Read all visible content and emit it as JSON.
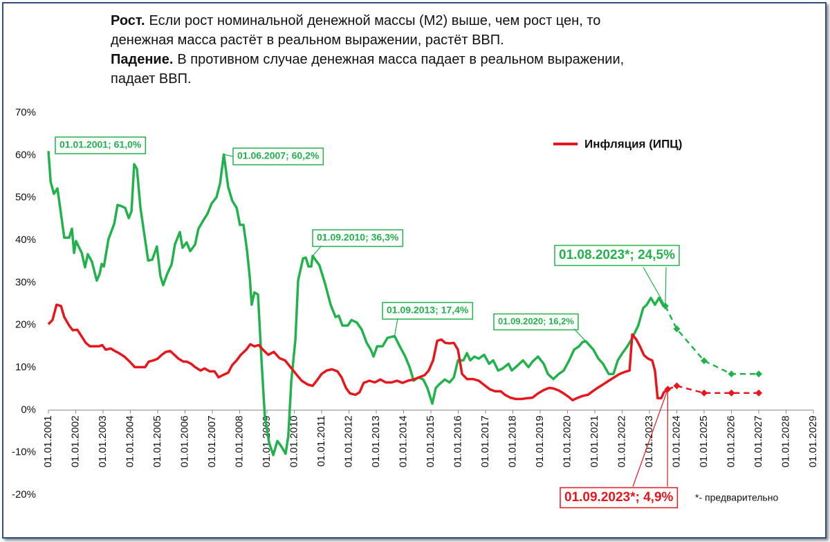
{
  "header": {
    "lines": [
      {
        "bold": "Рост.",
        "text": "Если рост номинальной денежной массы (М2) выше, чем рост цен,  то"
      },
      {
        "text": "денежная масса растёт в реальном выражении, растёт ВВП."
      },
      {
        "bold": "Падение.",
        "text": "В противном случае денежная масса падает в реальном выражении,"
      },
      {
        "text": "падает ВВП."
      }
    ]
  },
  "chart_data": {
    "type": "line",
    "xlim": [
      2001,
      2029
    ],
    "xticks": [
      {
        "value": 2001,
        "label": "01.01.2001"
      },
      {
        "value": 2002,
        "label": "01.01.2002"
      },
      {
        "value": 2003,
        "label": "01.01.2003"
      },
      {
        "value": 2004,
        "label": "01.01.2004"
      },
      {
        "value": 2005,
        "label": "01.01.2005"
      },
      {
        "value": 2006,
        "label": "01.01.2006"
      },
      {
        "value": 2007,
        "label": "01.01.2007"
      },
      {
        "value": 2008,
        "label": "01.01.2008"
      },
      {
        "value": 2009,
        "label": "01.01.2009"
      },
      {
        "value": 2010,
        "label": "01.01.2010"
      },
      {
        "value": 2011,
        "label": "01.01.2011"
      },
      {
        "value": 2012,
        "label": "01.01.2012"
      },
      {
        "value": 2013,
        "label": "01.01.2013"
      },
      {
        "value": 2014,
        "label": "01.01.2014"
      },
      {
        "value": 2015,
        "label": "01.01.2015"
      },
      {
        "value": 2016,
        "label": "01.01.2016"
      },
      {
        "value": 2017,
        "label": "01.01.2017"
      },
      {
        "value": 2018,
        "label": "01.01.2018"
      },
      {
        "value": 2019,
        "label": "01.01.2019"
      },
      {
        "value": 2020,
        "label": "01.01.2020"
      },
      {
        "value": 2021,
        "label": "01.01.2021"
      },
      {
        "value": 2022,
        "label": "01.01.2022"
      },
      {
        "value": 2023,
        "label": "01.01.2023"
      },
      {
        "value": 2024,
        "label": "01.01.2024"
      },
      {
        "value": 2025,
        "label": "01.01.2025"
      },
      {
        "value": 2026,
        "label": "01.01.2026"
      },
      {
        "value": 2027,
        "label": "01.01.2027"
      },
      {
        "value": 2028,
        "label": "01.01.2028"
      },
      {
        "value": 2029,
        "label": "01.01.2029"
      }
    ],
    "ylim": [
      -20,
      70
    ],
    "yticks": [
      {
        "value": -20,
        "label": "-20%"
      },
      {
        "value": -10,
        "label": "-10%"
      },
      {
        "value": 0,
        "label": "0%"
      },
      {
        "value": 10,
        "label": "10%"
      },
      {
        "value": 20,
        "label": "20%"
      },
      {
        "value": 30,
        "label": "30%"
      },
      {
        "value": 40,
        "label": "40%"
      },
      {
        "value": 50,
        "label": "50%"
      },
      {
        "value": 60,
        "label": "60%"
      },
      {
        "value": 70,
        "label": "70%"
      }
    ],
    "legend": "top-right",
    "series": [
      {
        "color": "#21b24b",
        "dashed": false,
        "x": [
          2001,
          2001.08,
          2001.2,
          2001.33,
          2001.43,
          2001.58,
          2001.76,
          2001.86,
          2001.94,
          2002.01,
          2002.22,
          2002.34,
          2002.44,
          2002.59,
          2002.77,
          2002.87,
          2002.95,
          2003.03,
          2003.2,
          2003.41,
          2003.53,
          2003.68,
          2003.81,
          2003.94,
          2004.04,
          2004.14,
          2004.24,
          2004.37,
          2004.54,
          2004.65,
          2004.8,
          2004.97,
          2005.1,
          2005.2,
          2005.35,
          2005.51,
          2005.63,
          2005.81,
          2005.91,
          2006.06,
          2006.19,
          2006.37,
          2006.49,
          2006.7,
          2006.82,
          2006.97,
          2007.15,
          2007.28,
          2007.42,
          2007.58,
          2007.73,
          2007.89,
          2008.01,
          2008.14,
          2008.27,
          2008.37,
          2008.44,
          2008.54,
          2008.67,
          2008.8,
          2008.92,
          2009.08,
          2009.23,
          2009.38,
          2009.53,
          2009.68,
          2009.78,
          2009.89,
          2010.04,
          2010.14,
          2010.32,
          2010.42,
          2010.52,
          2010.62,
          2010.67,
          2010.92,
          2011.13,
          2011.33,
          2011.51,
          2011.63,
          2011.76,
          2011.96,
          2012.09,
          2012.29,
          2012.47,
          2012.65,
          2012.8,
          2012.9,
          2013.03,
          2013.23,
          2013.41,
          2013.67,
          2013.86,
          2014.06,
          2014.22,
          2014.37,
          2014.54,
          2014.72,
          2014.87,
          2015.05,
          2015.18,
          2015.3,
          2015.51,
          2015.68,
          2015.84,
          2015.99,
          2016.19,
          2016.32,
          2016.44,
          2016.59,
          2016.75,
          2016.95,
          2017.13,
          2017.28,
          2017.46,
          2017.63,
          2017.84,
          2017.96,
          2018.16,
          2018.37,
          2018.57,
          2018.72,
          2018.92,
          2019.13,
          2019.28,
          2019.48,
          2019.68,
          2019.86,
          2020.06,
          2020.24,
          2020.42,
          2020.55,
          2020.67,
          2020.95,
          2021.13,
          2021.3,
          2021.51,
          2021.68,
          2021.84,
          2022.01,
          2022.19,
          2022.34,
          2022.47,
          2022.59,
          2022.77,
          2022.9,
          2023.05,
          2023.2,
          2023.35,
          2023.48,
          2023.58
        ],
        "values": [
          61,
          53.8,
          50.9,
          52.2,
          47.6,
          40.6,
          40.6,
          42.7,
          37,
          39.8,
          37,
          33.6,
          36.7,
          35,
          30.5,
          32,
          34.4,
          33.8,
          40.3,
          43.9,
          48.3,
          48,
          47.6,
          45.2,
          46.8,
          57.9,
          56.8,
          47.6,
          40.1,
          35.2,
          35.4,
          38.5,
          31.6,
          29.4,
          32.1,
          34.3,
          39,
          41.9,
          38.2,
          39.5,
          37.4,
          39,
          42.7,
          45,
          46.2,
          48.6,
          50.1,
          53.3,
          60.2,
          52.5,
          49.3,
          47.6,
          43.6,
          43.6,
          37.5,
          31.3,
          24.8,
          27.7,
          27.2,
          11.7,
          -1.3,
          -7.8,
          -10.6,
          -7.3,
          -8.6,
          -10.3,
          -6.2,
          6.9,
          16.6,
          30.5,
          35.7,
          35.9,
          33.8,
          33.8,
          36.3,
          34.1,
          29.7,
          24.8,
          21.9,
          22.2,
          19.9,
          19.9,
          21.2,
          20.6,
          18.9,
          15.8,
          14.2,
          12.6,
          15,
          15,
          17,
          17.4,
          15,
          12.6,
          10.1,
          6.9,
          7.7,
          7.2,
          5.2,
          1.5,
          5.2,
          6,
          7.2,
          6.5,
          7.7,
          11.7,
          11.7,
          13.4,
          11.7,
          12.6,
          12.1,
          13,
          10.9,
          11.7,
          9.3,
          9.8,
          10.9,
          9.3,
          10.4,
          11.7,
          10.1,
          11.4,
          12.6,
          10.9,
          8.5,
          7.3,
          8.5,
          9.3,
          11.7,
          14.2,
          15,
          16,
          16.2,
          14.2,
          12.1,
          10.9,
          8.5,
          8.5,
          11.7,
          13.4,
          15,
          16.6,
          18.3,
          19.9,
          24,
          24.8,
          26.4,
          24.8,
          26.4,
          24.8,
          24.5
        ]
      },
      {
        "color": "#21b24b",
        "dashed": true,
        "x": [
          2023.58,
          2024,
          2025,
          2026,
          2027
        ],
        "values": [
          24.5,
          19.1,
          11.6,
          8.5,
          8.5
        ]
      },
      {
        "name": "Инфляция (ИПЦ)",
        "color": "#e8161c",
        "dashed": false,
        "x": [
          2001,
          2001.15,
          2001.3,
          2001.46,
          2001.58,
          2001.76,
          2001.89,
          2002.06,
          2002.22,
          2002.37,
          2002.52,
          2002.85,
          2002.97,
          2003.1,
          2003.28,
          2003.43,
          2003.58,
          2003.78,
          2003.99,
          2004.16,
          2004.54,
          2004.67,
          2004.85,
          2005,
          2005.15,
          2005.3,
          2005.46,
          2005.61,
          2005.76,
          2005.94,
          2006.06,
          2006.22,
          2006.37,
          2006.57,
          2006.72,
          2006.9,
          2007.08,
          2007.23,
          2007.38,
          2007.58,
          2007.73,
          2007.89,
          2008.04,
          2008.24,
          2008.39,
          2008.54,
          2008.7,
          2008.85,
          2009.05,
          2009.25,
          2009.46,
          2009.66,
          2009.86,
          2010.06,
          2010.27,
          2010.49,
          2010.67,
          2010.82,
          2011,
          2011.18,
          2011.38,
          2011.58,
          2011.73,
          2011.89,
          2012.04,
          2012.24,
          2012.39,
          2012.54,
          2012.75,
          2012.95,
          2013.15,
          2013.35,
          2013.56,
          2013.76,
          2013.96,
          2014.16,
          2014.37,
          2014.57,
          2014.77,
          2014.92,
          2015.08,
          2015.23,
          2015.38,
          2015.53,
          2015.68,
          2015.84,
          2015.99,
          2016.14,
          2016.32,
          2016.54,
          2016.75,
          2016.95,
          2017.15,
          2017.35,
          2017.56,
          2017.71,
          2017.91,
          2018.11,
          2018.32,
          2018.52,
          2018.72,
          2018.92,
          2019.13,
          2019.33,
          2019.48,
          2019.68,
          2019.86,
          2020.04,
          2020.19,
          2020.34,
          2020.54,
          2020.75,
          2020.92,
          2021.1,
          2021.3,
          2021.51,
          2021.71,
          2021.91,
          2022.11,
          2022.27,
          2022.37,
          2022.52,
          2022.65,
          2022.8,
          2022.95,
          2023.1,
          2023.2,
          2023.3,
          2023.43,
          2023.53,
          2023.67
        ],
        "values": [
          20.2,
          21.2,
          24.8,
          24.5,
          21.9,
          19.9,
          18.8,
          18.9,
          17.3,
          15.8,
          15,
          15,
          15.3,
          14.2,
          14.5,
          13.9,
          13.4,
          12.6,
          11.3,
          10.1,
          10.1,
          11.4,
          11.7,
          12.1,
          13,
          13.7,
          13.9,
          13,
          12.1,
          11.4,
          11.4,
          10.9,
          10.1,
          9.3,
          9.8,
          9.1,
          9.1,
          7.7,
          8.2,
          8.8,
          10.6,
          11.7,
          13,
          14.2,
          15.5,
          15,
          15.3,
          14.2,
          13,
          13.7,
          12.2,
          11.7,
          10.1,
          8.5,
          6.9,
          6,
          5.7,
          6.9,
          8.5,
          9.3,
          9.6,
          9.1,
          7.7,
          5.2,
          3.9,
          3.6,
          4.2,
          6.4,
          6.9,
          6.5,
          7.2,
          6.5,
          6.5,
          6.9,
          6.4,
          6.9,
          7.2,
          7.7,
          8.2,
          9.3,
          11.7,
          16.3,
          16.6,
          15.8,
          15.7,
          15.8,
          14.2,
          8.5,
          7.3,
          7.3,
          6.9,
          5.9,
          4.9,
          4.4,
          4.4,
          3.6,
          2.9,
          2.6,
          2.6,
          2.8,
          2.9,
          3.9,
          4.7,
          5.2,
          5.1,
          4.6,
          3.9,
          3.1,
          2.3,
          2.8,
          3.3,
          3.6,
          4.4,
          5.2,
          6,
          6.9,
          7.7,
          8.5,
          9,
          9.3,
          17.8,
          16.6,
          15,
          12.9,
          12.1,
          11.7,
          9.3,
          2.8,
          2.8,
          4.2,
          4.9
        ]
      },
      {
        "color": "#e8161c",
        "dashed": true,
        "x": [
          2023.67,
          2024,
          2025,
          2026,
          2027
        ],
        "values": [
          4.9,
          5.7,
          4,
          4,
          4
        ]
      }
    ],
    "annotations": [
      {
        "text": "01.01.2001; 61,0%",
        "x": 2001,
        "y": 61,
        "color": "#21b24b"
      },
      {
        "text": "01.06.2007; 60,2%",
        "x": 2007.42,
        "y": 60.2,
        "color": "#21b24b"
      },
      {
        "text": "01.09.2010; 36,3%",
        "x": 2010.67,
        "y": 36.3,
        "color": "#21b24b"
      },
      {
        "text": "01.09.2013; 17,4%",
        "x": 2013.67,
        "y": 17.4,
        "color": "#21b24b"
      },
      {
        "text": "01.09.2020; 16,2%",
        "x": 2020.67,
        "y": 16.2,
        "color": "#21b24b"
      },
      {
        "text": "01.08.2023*; 24,5%",
        "x": 2023.58,
        "y": 24.5,
        "color": "#21b24b"
      },
      {
        "text": "01.09.2023*; 4,9%",
        "x": 2023.67,
        "y": 4.9,
        "color": "#e8161c"
      }
    ],
    "footnote": "*- предварительно"
  }
}
